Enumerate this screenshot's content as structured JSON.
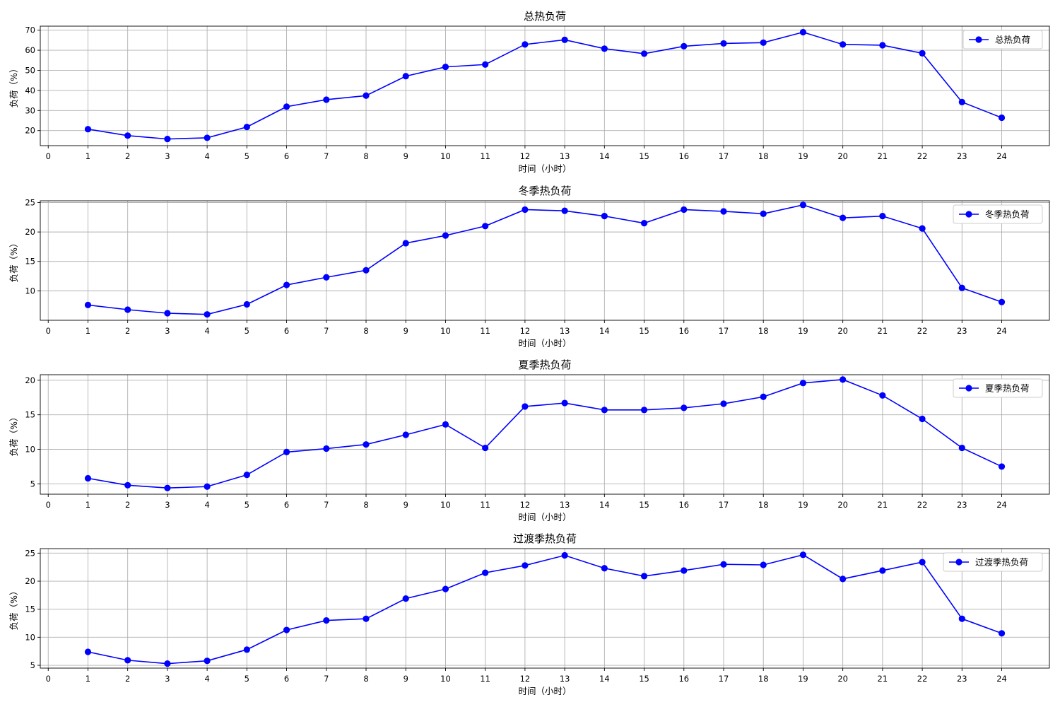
{
  "chart_data": [
    {
      "type": "line",
      "title": "总热负荷",
      "xlabel": "时间（小时）",
      "ylabel": "负荷（%）",
      "xlim": [
        -0.2,
        25.2
      ],
      "ylim": [
        12.5,
        72
      ],
      "x_ticks": [
        0,
        1,
        2,
        3,
        4,
        5,
        6,
        7,
        8,
        9,
        10,
        11,
        12,
        13,
        14,
        15,
        16,
        17,
        18,
        19,
        20,
        21,
        22,
        23,
        24
      ],
      "y_ticks": [
        20,
        30,
        40,
        50,
        60,
        70
      ],
      "grid": true,
      "legend": "upper-right",
      "color": "#0000ff",
      "series": [
        {
          "name": "总热负荷",
          "x": [
            1,
            2,
            3,
            4,
            5,
            6,
            7,
            8,
            9,
            10,
            11,
            12,
            13,
            14,
            15,
            16,
            17,
            18,
            19,
            20,
            21,
            22,
            23,
            24
          ],
          "y": [
            20.7,
            17.5,
            15.8,
            16.4,
            21.8,
            31.9,
            35.4,
            37.4,
            47.1,
            51.7,
            52.9,
            62.9,
            65.2,
            60.8,
            58.3,
            62.0,
            63.4,
            63.8,
            69.0,
            62.9,
            62.5,
            58.5,
            34.2,
            26.4
          ]
        }
      ]
    },
    {
      "type": "line",
      "title": "冬季热负荷",
      "xlabel": "时间（小时）",
      "ylabel": "负荷（%）",
      "xlim": [
        -0.2,
        25.2
      ],
      "ylim": [
        5,
        25.3
      ],
      "x_ticks": [
        0,
        1,
        2,
        3,
        4,
        5,
        6,
        7,
        8,
        9,
        10,
        11,
        12,
        13,
        14,
        15,
        16,
        17,
        18,
        19,
        20,
        21,
        22,
        23,
        24
      ],
      "y_ticks": [
        10,
        15,
        20,
        25
      ],
      "grid": true,
      "legend": "upper-right",
      "color": "#0000ff",
      "series": [
        {
          "name": "冬季热负荷",
          "x": [
            1,
            2,
            3,
            4,
            5,
            6,
            7,
            8,
            9,
            10,
            11,
            12,
            13,
            14,
            15,
            16,
            17,
            18,
            19,
            20,
            21,
            22,
            23,
            24
          ],
          "y": [
            7.6,
            6.8,
            6.2,
            6.0,
            7.7,
            11.0,
            12.3,
            13.5,
            18.1,
            19.4,
            21.0,
            23.8,
            23.6,
            22.7,
            21.5,
            23.8,
            23.5,
            23.1,
            24.6,
            22.4,
            22.7,
            20.6,
            10.5,
            8.1
          ]
        }
      ]
    },
    {
      "type": "line",
      "title": "夏季热负荷",
      "xlabel": "时间（小时）",
      "ylabel": "负荷（%）",
      "xlim": [
        -0.2,
        25.2
      ],
      "ylim": [
        3.5,
        20.8
      ],
      "x_ticks": [
        0,
        1,
        2,
        3,
        4,
        5,
        6,
        7,
        8,
        9,
        10,
        11,
        12,
        13,
        14,
        15,
        16,
        17,
        18,
        19,
        20,
        21,
        22,
        23,
        24
      ],
      "y_ticks": [
        5,
        10,
        15,
        20
      ],
      "grid": true,
      "legend": "upper-right",
      "color": "#0000ff",
      "series": [
        {
          "name": "夏季热负荷",
          "x": [
            1,
            2,
            3,
            4,
            5,
            6,
            7,
            8,
            9,
            10,
            11,
            12,
            13,
            14,
            15,
            16,
            17,
            18,
            19,
            20,
            21,
            22,
            23,
            24
          ],
          "y": [
            5.8,
            4.8,
            4.4,
            4.6,
            6.3,
            9.6,
            10.1,
            10.7,
            12.1,
            13.6,
            10.2,
            16.2,
            16.7,
            15.7,
            15.7,
            16.0,
            16.6,
            17.6,
            19.6,
            20.1,
            17.8,
            14.4,
            10.2,
            7.5
          ]
        }
      ]
    },
    {
      "type": "line",
      "title": "过渡季热负荷",
      "xlabel": "时间（小时）",
      "ylabel": "负荷（%）",
      "xlim": [
        -0.2,
        25.2
      ],
      "ylim": [
        4.5,
        25.8
      ],
      "x_ticks": [
        0,
        1,
        2,
        3,
        4,
        5,
        6,
        7,
        8,
        9,
        10,
        11,
        12,
        13,
        14,
        15,
        16,
        17,
        18,
        19,
        20,
        21,
        22,
        23,
        24
      ],
      "y_ticks": [
        5,
        10,
        15,
        20,
        25
      ],
      "grid": true,
      "legend": "upper-right",
      "color": "#0000ff",
      "series": [
        {
          "name": "过渡季热负荷",
          "x": [
            1,
            2,
            3,
            4,
            5,
            6,
            7,
            8,
            9,
            10,
            11,
            12,
            13,
            14,
            15,
            16,
            17,
            18,
            19,
            20,
            21,
            22,
            23,
            24
          ],
          "y": [
            7.4,
            5.9,
            5.3,
            5.8,
            7.8,
            11.3,
            13.0,
            13.3,
            16.9,
            18.6,
            21.5,
            22.8,
            24.6,
            22.3,
            20.9,
            21.9,
            23.0,
            22.9,
            24.7,
            20.4,
            21.9,
            23.4,
            13.3,
            10.7
          ]
        }
      ]
    }
  ]
}
